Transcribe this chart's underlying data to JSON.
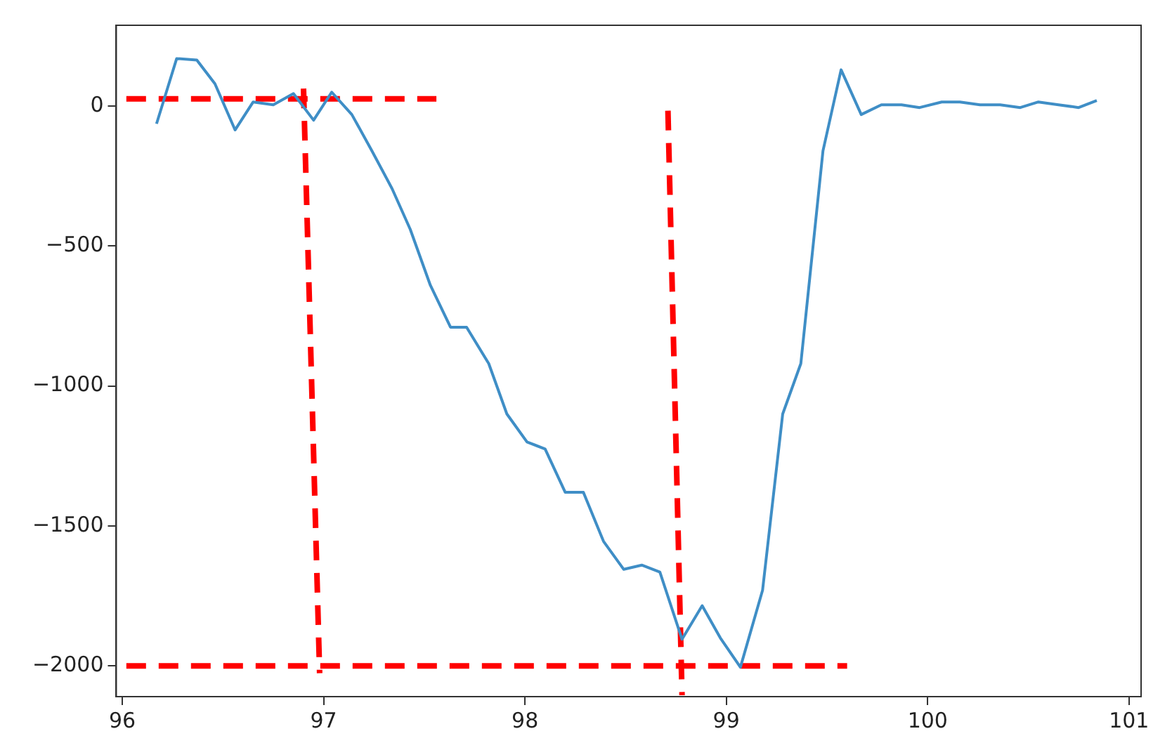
{
  "chart_data": {
    "type": "line",
    "xlim": [
      95.97,
      101.06
    ],
    "ylim": [
      -2110,
      289
    ],
    "xticks": [
      96,
      97,
      98,
      99,
      100,
      101
    ],
    "yticks": [
      -2000,
      -1500,
      -1000,
      -500,
      0
    ],
    "grid": false,
    "legend": false,
    "marker": "none",
    "series": [
      {
        "color": "#3f8ec6",
        "line_style": "solid",
        "x": [
          96.17,
          96.27,
          96.37,
          96.46,
          96.56,
          96.65,
          96.75,
          96.85,
          96.95,
          97.04,
          97.14,
          97.24,
          97.34,
          97.43,
          97.53,
          97.63,
          97.71,
          97.82,
          97.91,
          98.01,
          98.1,
          98.2,
          98.29,
          98.39,
          98.49,
          98.58,
          98.67,
          98.78,
          98.88,
          98.97,
          99.07,
          99.18,
          99.28,
          99.37,
          99.48,
          99.57,
          99.67,
          99.77,
          99.87,
          99.96,
          100.07,
          100.16,
          100.26,
          100.36,
          100.46,
          100.55,
          100.65,
          100.75,
          100.84
        ],
        "values": [
          -63,
          170,
          165,
          80,
          -85,
          15,
          5,
          45,
          -50,
          50,
          -30,
          -160,
          -295,
          -440,
          -640,
          -790,
          -790,
          -920,
          -1100,
          -1200,
          -1225,
          -1380,
          -1380,
          -1555,
          -1655,
          -1640,
          -1665,
          -1905,
          -1785,
          -1900,
          -2005,
          -1730,
          -1100,
          -920,
          -160,
          130,
          -30,
          5,
          5,
          -5,
          15,
          15,
          5,
          5,
          -5,
          15,
          5,
          -5,
          20
        ]
      },
      {
        "color": "#ff0000",
        "line_style": "dashed",
        "x": [
          96.02,
          97.56
        ],
        "values": [
          26,
          26
        ]
      },
      {
        "color": "#ff0000",
        "line_style": "dashed",
        "x": [
          96.02,
          99.6
        ],
        "values": [
          -2000,
          -2000
        ]
      },
      {
        "color": "#ff0000",
        "line_style": "dashed",
        "x": [
          96.9,
          96.98
        ],
        "values": [
          63,
          -2026
        ]
      },
      {
        "color": "#ff0000",
        "line_style": "dashed",
        "x": [
          98.71,
          98.78
        ],
        "values": [
          -16,
          -2105
        ]
      }
    ]
  }
}
